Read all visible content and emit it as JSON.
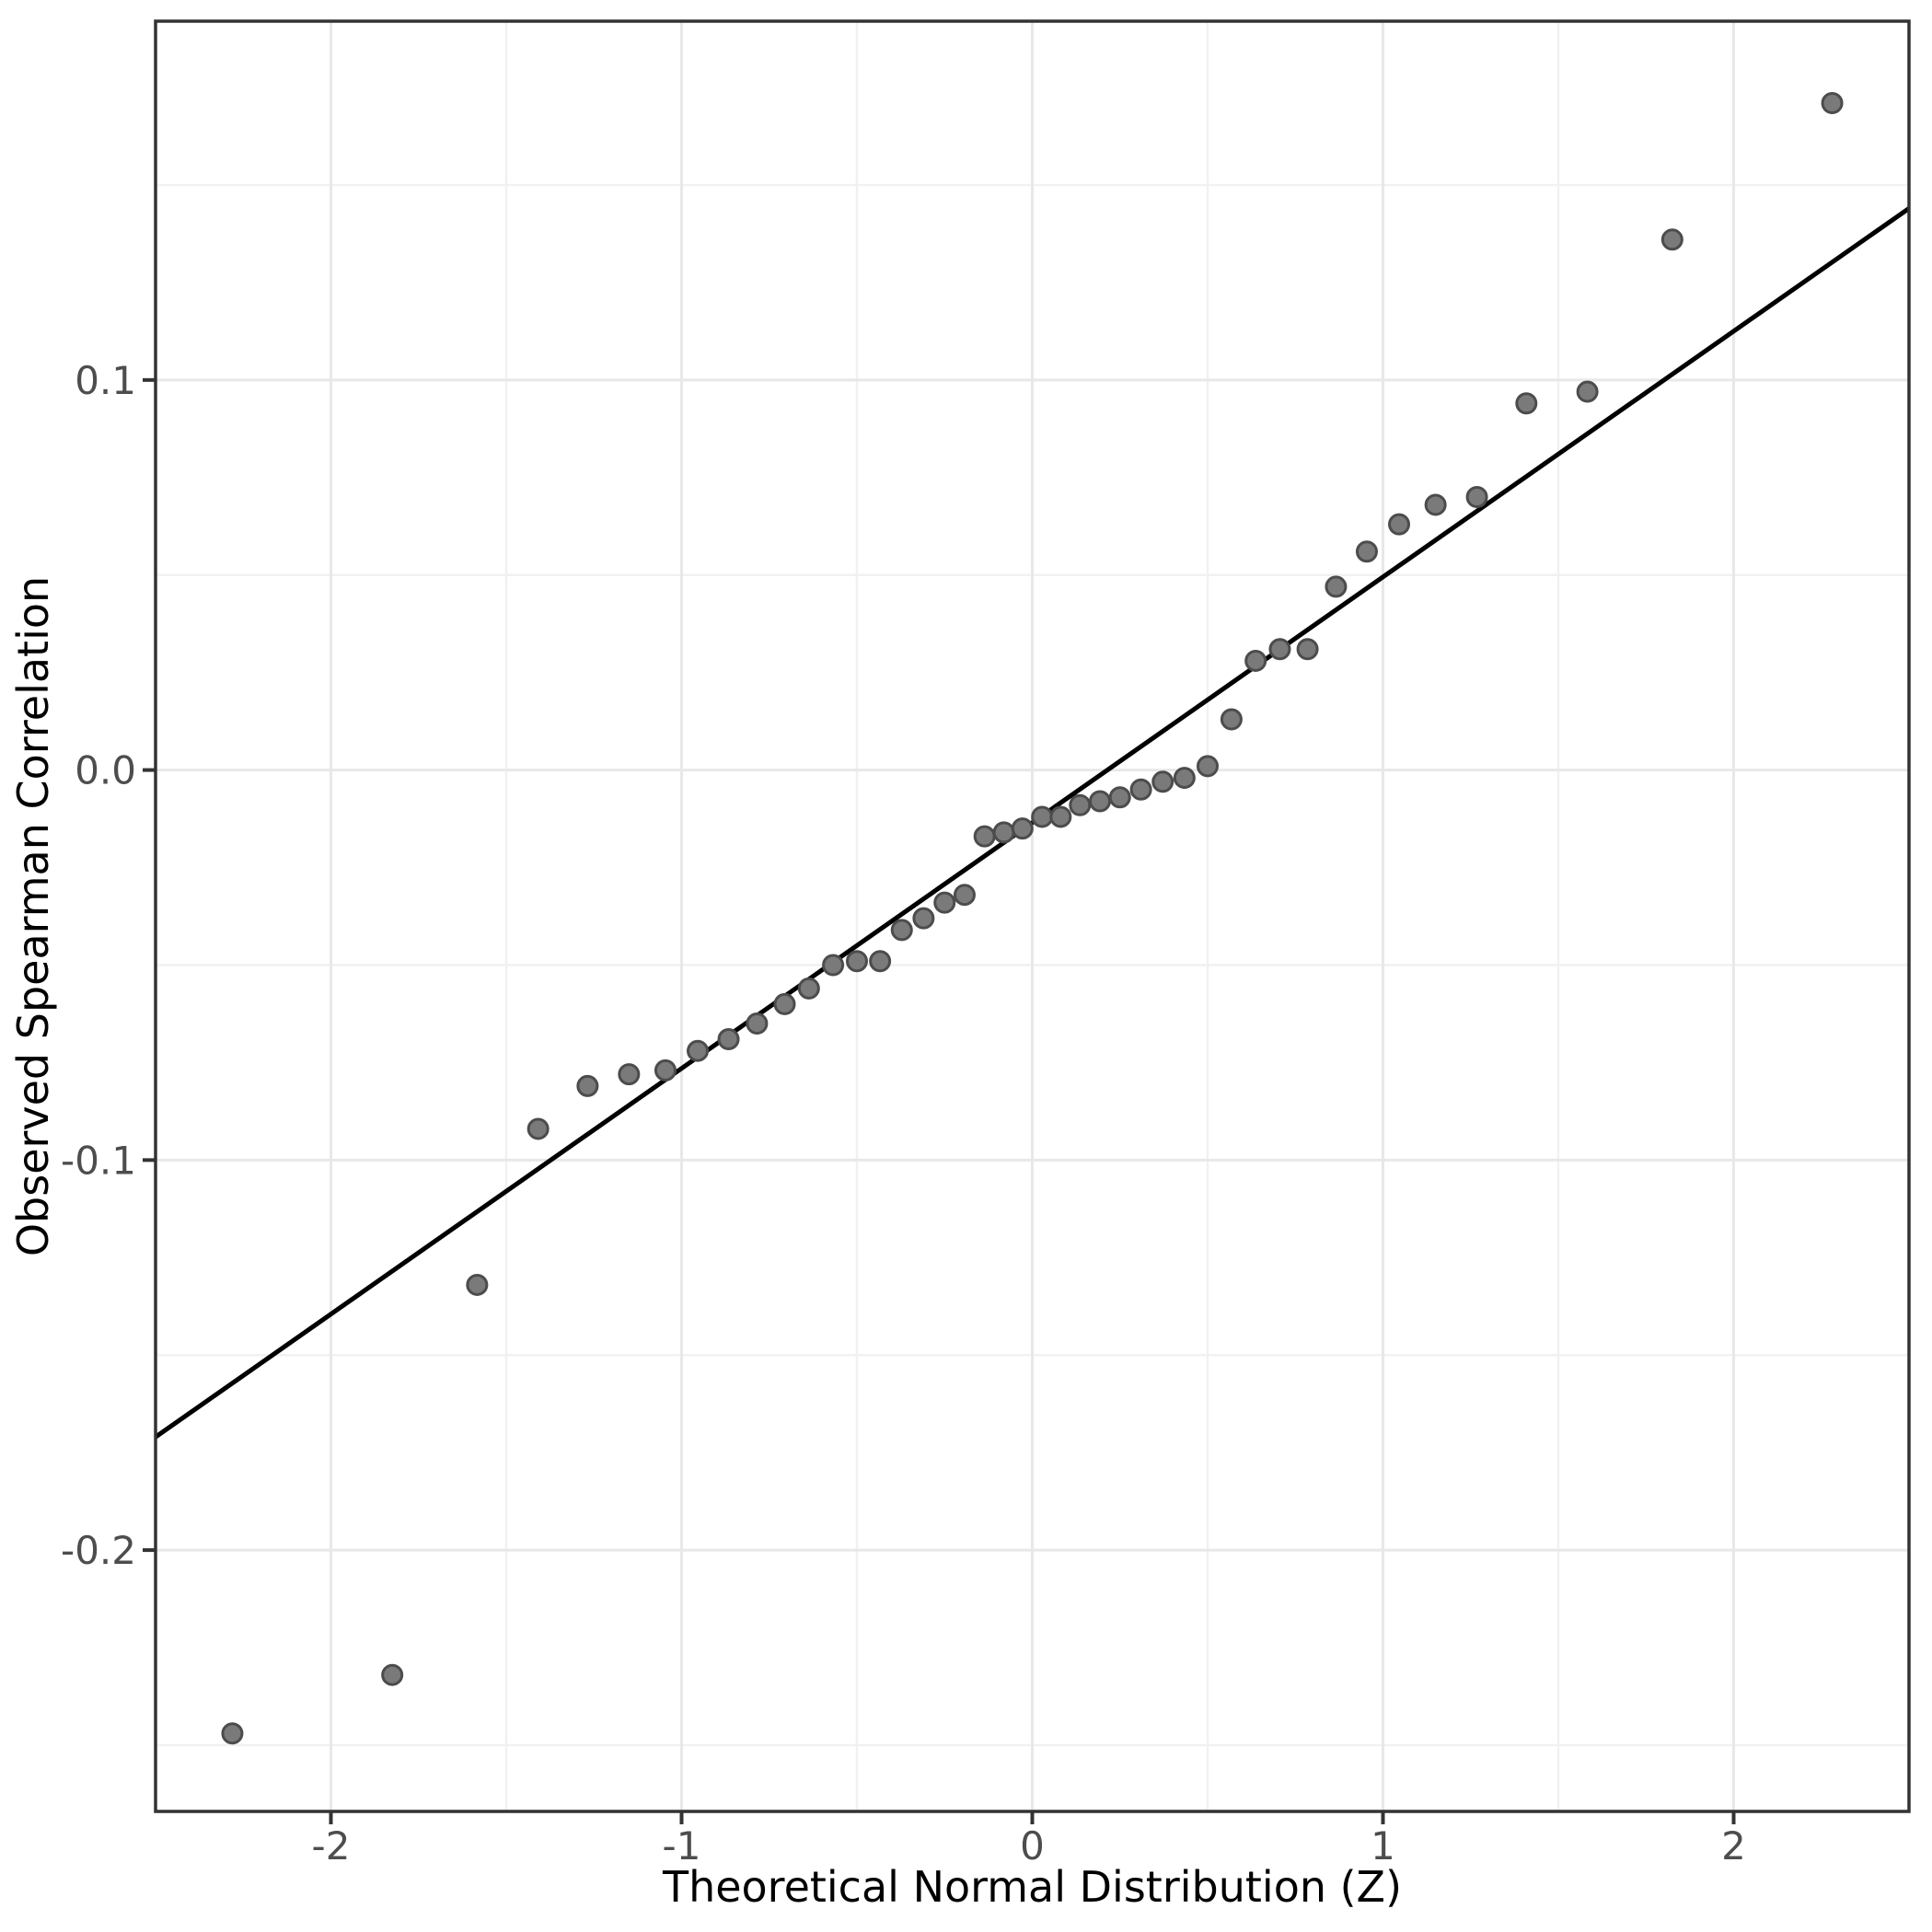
{
  "figure": {
    "background": "#ffffff"
  },
  "colors": {
    "panel_background": "#ffffff",
    "panel_border": "#333333",
    "grid_major": "#e8e8e8",
    "grid_minor": "#f1f1f1",
    "tick_mark": "#333333",
    "tick_label": "#4d4d4d",
    "axis_title": "#000000",
    "point_fill": "#7a7a7a",
    "point_stroke": "#4c4c4c",
    "reference_line": "#000000"
  },
  "chart_data": {
    "type": "scatter",
    "title": "",
    "xlabel": "Theoretical Normal Distribution (Z)",
    "ylabel": "Observed Spearman Correlation",
    "xlim": [
      -2.5,
      2.5
    ],
    "ylim": [
      -0.267,
      0.192
    ],
    "grid": "major+minor",
    "legend": "none",
    "x_ticks": [
      {
        "value": -2,
        "label": "-2"
      },
      {
        "value": -1,
        "label": "-1"
      },
      {
        "value": 0,
        "label": "0"
      },
      {
        "value": 1,
        "label": "1"
      },
      {
        "value": 2,
        "label": "2"
      }
    ],
    "x_minor_ticks": [
      -1.5,
      -0.5,
      0.5,
      1.5
    ],
    "y_ticks": [
      {
        "value": 0.1,
        "label": "0.1"
      },
      {
        "value": 0.0,
        "label": "0.0"
      },
      {
        "value": -0.1,
        "label": "-0.1"
      },
      {
        "value": -0.2,
        "label": "-0.2"
      }
    ],
    "y_minor_ticks": [
      0.15,
      0.05,
      -0.05,
      -0.15,
      -0.25
    ],
    "reference_line": {
      "slope": 0.063,
      "intercept": -0.0135
    },
    "series": [
      {
        "name": "qq-points",
        "x": [
          -2.281,
          -1.825,
          -1.583,
          -1.409,
          -1.268,
          -1.15,
          -1.046,
          -0.954,
          -0.866,
          -0.785,
          -0.706,
          -0.637,
          -0.568,
          -0.5,
          -0.434,
          -0.372,
          -0.31,
          -0.25,
          -0.193,
          -0.136,
          -0.081,
          -0.028,
          0.028,
          0.081,
          0.136,
          0.193,
          0.25,
          0.31,
          0.372,
          0.434,
          0.5,
          0.568,
          0.637,
          0.706,
          0.785,
          0.866,
          0.954,
          1.046,
          1.15,
          1.268,
          1.409,
          1.583,
          1.825,
          2.281
        ],
        "y": [
          -0.247,
          -0.232,
          -0.132,
          -0.092,
          -0.081,
          -0.078,
          -0.077,
          -0.072,
          -0.069,
          -0.065,
          -0.06,
          -0.056,
          -0.05,
          -0.049,
          -0.049,
          -0.041,
          -0.038,
          -0.034,
          -0.032,
          -0.017,
          -0.016,
          -0.015,
          -0.012,
          -0.012,
          -0.009,
          -0.008,
          -0.007,
          -0.005,
          -0.003,
          -0.002,
          0.001,
          0.013,
          0.028,
          0.031,
          0.031,
          0.047,
          0.056,
          0.063,
          0.068,
          0.07,
          0.094,
          0.097,
          0.136,
          0.171
        ]
      }
    ]
  }
}
